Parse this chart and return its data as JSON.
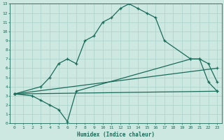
{
  "xlabel": "Humidex (Indice chaleur)",
  "bg_color": "#cce8e0",
  "grid_color": "#b0d4cc",
  "line_color": "#1a6b5a",
  "xlim": [
    -0.5,
    23.5
  ],
  "ylim": [
    0,
    13
  ],
  "xticks": [
    0,
    1,
    2,
    3,
    4,
    5,
    6,
    7,
    8,
    9,
    10,
    11,
    12,
    13,
    14,
    15,
    16,
    17,
    18,
    19,
    20,
    21,
    22,
    23
  ],
  "yticks": [
    0,
    1,
    2,
    3,
    4,
    5,
    6,
    7,
    8,
    9,
    10,
    11,
    12,
    13
  ],
  "series": [
    {
      "x": [
        0,
        3,
        4,
        5,
        6,
        7,
        8,
        9,
        10,
        11,
        12,
        13,
        14,
        15,
        16,
        17,
        20,
        21,
        22,
        23
      ],
      "y": [
        3.2,
        4.0,
        5.0,
        6.5,
        7.0,
        6.5,
        9.0,
        9.5,
        11.0,
        11.5,
        12.5,
        13.0,
        12.5,
        12.0,
        11.5,
        9.0,
        7.0,
        7.0,
        6.5,
        4.5
      ]
    },
    {
      "x": [
        0,
        2,
        3,
        4,
        5,
        6,
        7,
        20,
        21,
        22,
        23
      ],
      "y": [
        3.2,
        3.0,
        2.5,
        2.0,
        1.5,
        0.2,
        3.5,
        7.0,
        7.0,
        4.5,
        3.5
      ]
    },
    {
      "x": [
        0,
        23
      ],
      "y": [
        3.2,
        6.0
      ]
    },
    {
      "x": [
        0,
        23
      ],
      "y": [
        3.2,
        3.5
      ]
    }
  ]
}
